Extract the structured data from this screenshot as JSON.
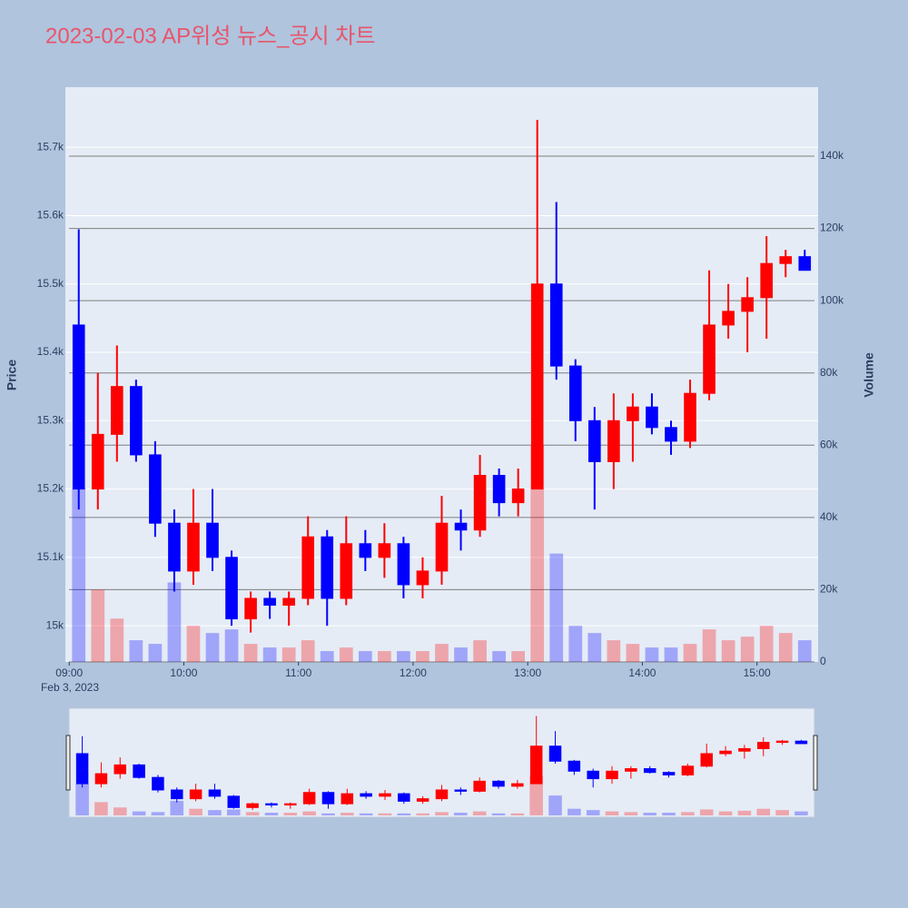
{
  "chart_data": {
    "type": "candlestick",
    "title": "2023-02-03 AP위성 뉴스_공시 차트",
    "y_label": "Price",
    "y2_label": "Volume",
    "date_label": "Feb 3, 2023",
    "x": [
      "09:00",
      "09:10",
      "09:20",
      "09:30",
      "09:40",
      "09:50",
      "10:00",
      "10:10",
      "10:20",
      "10:30",
      "10:40",
      "10:50",
      "11:00",
      "11:10",
      "11:20",
      "11:30",
      "11:40",
      "11:50",
      "12:00",
      "12:10",
      "12:20",
      "12:30",
      "12:40",
      "12:50",
      "13:00",
      "13:10",
      "13:20",
      "13:30",
      "13:40",
      "13:50",
      "14:00",
      "14:10",
      "14:20",
      "14:30",
      "14:40",
      "14:50",
      "15:00",
      "15:10",
      "15:20"
    ],
    "open": [
      15440,
      15200,
      15280,
      15350,
      15250,
      15150,
      15080,
      15150,
      15100,
      15010,
      15040,
      15030,
      15040,
      15130,
      15040,
      15120,
      15100,
      15120,
      15060,
      15080,
      15150,
      15140,
      15220,
      15180,
      15200,
      15500,
      15380,
      15300,
      15240,
      15300,
      15320,
      15290,
      15270,
      15340,
      15440,
      15460,
      15480,
      15530,
      15540
    ],
    "high": [
      15580,
      15370,
      15410,
      15360,
      15270,
      15170,
      15200,
      15200,
      15110,
      15050,
      15050,
      15050,
      15160,
      15140,
      15160,
      15140,
      15150,
      15130,
      15100,
      15190,
      15170,
      15250,
      15230,
      15230,
      15740,
      15620,
      15390,
      15320,
      15340,
      15340,
      15340,
      15300,
      15360,
      15520,
      15500,
      15510,
      15570,
      15550,
      15550
    ],
    "low": [
      15170,
      15170,
      15240,
      15240,
      15130,
      15050,
      15060,
      15080,
      15000,
      14990,
      15010,
      15000,
      15030,
      15000,
      15030,
      15080,
      15070,
      15040,
      15040,
      15060,
      15110,
      15130,
      15160,
      15160,
      15200,
      15360,
      15270,
      15170,
      15200,
      15240,
      15280,
      15250,
      15260,
      15330,
      15420,
      15400,
      15420,
      15510,
      15520
    ],
    "close": [
      15200,
      15280,
      15350,
      15250,
      15150,
      15080,
      15150,
      15100,
      15010,
      15040,
      15030,
      15040,
      15130,
      15040,
      15120,
      15100,
      15120,
      15060,
      15080,
      15150,
      15140,
      15220,
      15180,
      15200,
      15500,
      15380,
      15300,
      15240,
      15300,
      15320,
      15290,
      15270,
      15340,
      15440,
      15460,
      15480,
      15530,
      15540,
      15520
    ],
    "volume": [
      48000,
      20000,
      12000,
      6000,
      5000,
      22000,
      10000,
      8000,
      9000,
      5000,
      4000,
      4000,
      6000,
      3000,
      4000,
      3000,
      3000,
      3000,
      3000,
      5000,
      4000,
      6000,
      3000,
      3000,
      60000,
      30000,
      10000,
      8000,
      6000,
      5000,
      4000,
      4000,
      5000,
      9000,
      6000,
      7000,
      10000,
      8000,
      6000
    ],
    "increasing_color": "#ff0000",
    "decreasing_color": "#0000ff",
    "xlim": [
      "08:58",
      "15:32"
    ],
    "xticks": [
      "09:00",
      "10:00",
      "11:00",
      "12:00",
      "13:00",
      "14:00",
      "15:00"
    ],
    "ylim": [
      14947,
      15788
    ],
    "yticks": [
      {
        "value": 15000,
        "label": "15k"
      },
      {
        "value": 15100,
        "label": "15.1k"
      },
      {
        "value": 15200,
        "label": "15.2k"
      },
      {
        "value": 15300,
        "label": "15.3k"
      },
      {
        "value": 15400,
        "label": "15.4k"
      },
      {
        "value": 15500,
        "label": "15.5k"
      },
      {
        "value": 15600,
        "label": "15.6k"
      },
      {
        "value": 15700,
        "label": "15.7k"
      }
    ],
    "y2lim": [
      0,
      159100
    ],
    "y2ticks": [
      0,
      {
        "value": 20000,
        "label": "20k"
      },
      {
        "value": 40000,
        "label": "40k"
      },
      {
        "value": 60000,
        "label": "60k"
      },
      {
        "value": 80000,
        "label": "80k"
      },
      {
        "value": 100000,
        "label": "100k"
      },
      {
        "value": 120000,
        "label": "120k"
      },
      {
        "value": 140000,
        "label": "140k"
      }
    ],
    "grid": true
  }
}
